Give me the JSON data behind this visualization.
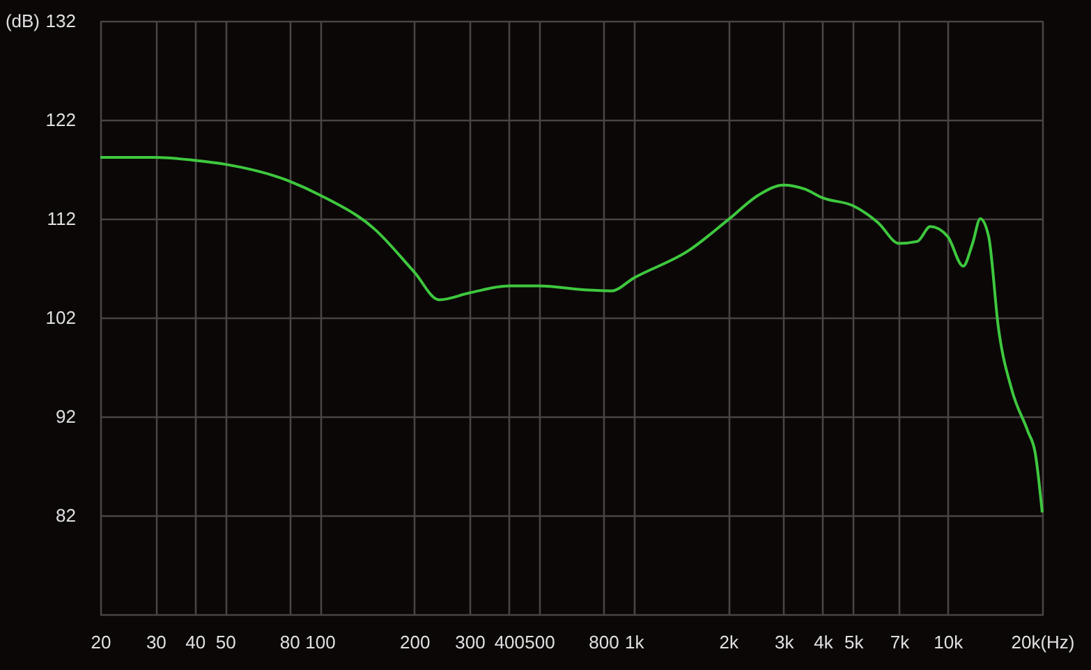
{
  "chart_data": {
    "type": "line",
    "ylabel": "(dB)",
    "x": [
      20,
      30,
      40,
      50,
      80,
      100,
      150,
      200,
      240,
      300,
      400,
      500,
      700,
      850,
      1000,
      1500,
      2000,
      2500,
      3000,
      3500,
      4000,
      5000,
      6000,
      7000,
      8000,
      8800,
      10000,
      11200,
      12000,
      12700,
      13500,
      14500,
      16000,
      18000,
      19000,
      20000
    ],
    "series": [
      {
        "color": "#3ec83e",
        "values": [
          118.2,
          118.2,
          117.9,
          117.5,
          115.8,
          114.4,
          110.9,
          106.6,
          103.8,
          104.5,
          105.2,
          105.2,
          104.8,
          104.7,
          106,
          108.8,
          111.9,
          114.4,
          115.4,
          115,
          114.1,
          113.3,
          111.6,
          109.5,
          109.7,
          111.2,
          110.2,
          107.2,
          109.5,
          112,
          110.2,
          101,
          94.7,
          90.5,
          88.3,
          82.3
        ]
      }
    ],
    "log": "x",
    "xlim": [
      20,
      20000
    ],
    "ylim": [
      72,
      132
    ],
    "xticks": [
      20,
      30,
      40,
      50,
      80,
      100,
      200,
      300,
      400,
      500,
      800,
      {
        "value": 1000,
        "label": "1k"
      },
      {
        "value": 2000,
        "label": "2k"
      },
      {
        "value": 3000,
        "label": "3k"
      },
      {
        "value": 4000,
        "label": "4k"
      },
      {
        "value": 5000,
        "label": "5k"
      },
      {
        "value": 7000,
        "label": "7k"
      },
      {
        "value": 10000,
        "label": "10k"
      },
      {
        "value": 20000,
        "label": "20k(Hz)"
      }
    ],
    "yticks": [
      {
        "value": 72,
        "label": null
      },
      82,
      92,
      102,
      112,
      122,
      132
    ],
    "grid": true,
    "marker": "none",
    "line_style": "solid"
  }
}
